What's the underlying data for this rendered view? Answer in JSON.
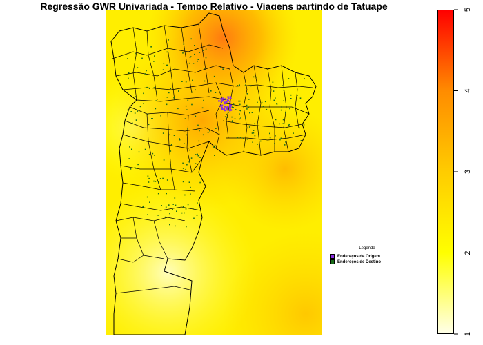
{
  "title": "Regressão GWR Univariada - Tempo Relativo - Viagens partindo de Tatuape",
  "legend": {
    "title": "Legenda",
    "items": [
      {
        "label": "Endereços de Origem",
        "color": "#8a2be2"
      },
      {
        "label": "Endereços de Destino",
        "color": "#1a6b1a"
      }
    ]
  },
  "color_scale": {
    "min": 1,
    "max": 5,
    "ticks": [
      "1",
      "2",
      "3",
      "4",
      "5"
    ],
    "colors": [
      "#ffffe8",
      "#ffff00",
      "#ffcc00",
      "#ff8c00",
      "#ff0000"
    ]
  },
  "colors": {
    "background_low": "#ffee00",
    "hotspot": "#ff7a10",
    "boundary": "#000000",
    "destination_points": "#1a6b1a",
    "origin_points": "#8a2be2"
  }
}
